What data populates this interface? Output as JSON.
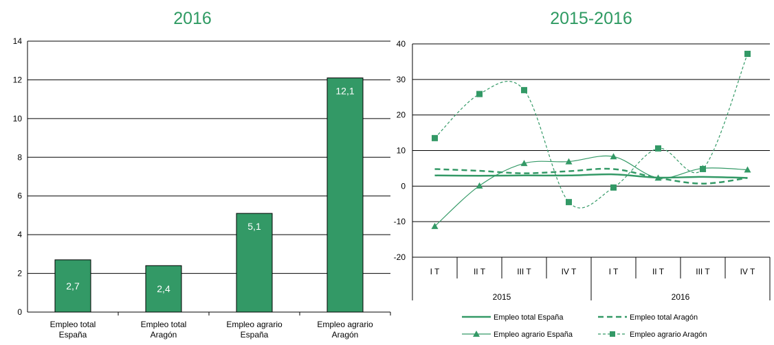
{
  "chart_data": [
    {
      "type": "bar",
      "title": "2016",
      "categories": [
        [
          "Empleo total",
          "España"
        ],
        [
          "Empleo total",
          "Aragón"
        ],
        [
          "Empleo agrario",
          "España"
        ],
        [
          "Empleo agrario",
          "Aragón"
        ]
      ],
      "values": [
        2.7,
        2.4,
        5.1,
        12.1
      ],
      "data_labels": [
        "2,7",
        "2,4",
        "5,1",
        "12,1"
      ],
      "ylim": [
        0,
        14
      ],
      "yticks": [
        0,
        2,
        4,
        6,
        8,
        10,
        12,
        14
      ],
      "grid": true,
      "color": "#339966"
    },
    {
      "type": "line",
      "title": "2015-2016",
      "quarters": [
        "I T",
        "II T",
        "III T",
        "IV T",
        "I T",
        "II T",
        "III T",
        "IV T"
      ],
      "years": [
        "2015",
        "2016"
      ],
      "ylim": [
        -20,
        40
      ],
      "yticks": [
        -20,
        -10,
        0,
        10,
        20,
        30,
        40
      ],
      "grid": true,
      "legend_position": "bottom",
      "series": [
        {
          "name": "Empleo total España",
          "style": "solid",
          "marker": "none",
          "values": [
            3.0,
            2.9,
            3.0,
            3.0,
            3.3,
            2.4,
            2.6,
            2.3
          ]
        },
        {
          "name": "Empleo total Aragón",
          "style": "dashed",
          "marker": "none",
          "values": [
            4.8,
            4.3,
            3.6,
            4.2,
            4.8,
            2.3,
            0.7,
            2.3
          ]
        },
        {
          "name": "Empleo agrario España",
          "style": "solid-thin",
          "marker": "triangle",
          "values": [
            -11.3,
            0.1,
            6.4,
            6.9,
            8.3,
            2.3,
            5.0,
            4.6
          ]
        },
        {
          "name": "Empleo agrario Aragón",
          "style": "dotted",
          "marker": "square",
          "values": [
            13.5,
            25.9,
            27.0,
            -4.5,
            -0.4,
            10.6,
            4.8,
            37.2
          ]
        }
      ],
      "color": "#339966"
    }
  ]
}
